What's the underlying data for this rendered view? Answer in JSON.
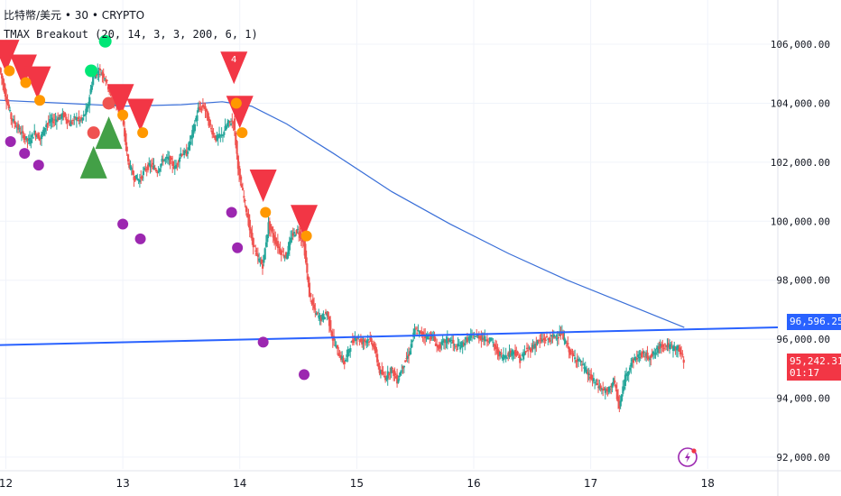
{
  "header": {
    "symbol_line": "比特幣/美元 • 30 • CRYPTO",
    "indicator_line": "TMAX Breakout (20, 14, 3, 3, 200, 6, 1)"
  },
  "tags": {
    "trendline_price": "96,596.25",
    "last_price": "95,242.31",
    "countdown": "01:17"
  },
  "colors": {
    "up": "#26a69a",
    "down": "#ef5350",
    "ma": "#3a6fd8",
    "trendline": "#2962ff",
    "sell_triangle": "#f23645",
    "buy_triangle": "#43a047",
    "orange_dot": "#ff9800",
    "purple_dot": "#9c27b0",
    "green_dot": "#00e676",
    "red_dot": "#ef5350"
  },
  "chart_data": {
    "type": "candlestick",
    "y_axis": {
      "ticks": [
        92000,
        94000,
        96000,
        98000,
        100000,
        102000,
        104000,
        106000
      ],
      "tick_labels": [
        "92,000.00",
        "94,000.00",
        "96,000.00",
        "98,000.00",
        "100,000.00",
        "102,000.00",
        "104,000.00",
        "106,000.00"
      ],
      "ylim": [
        91600,
        107500
      ]
    },
    "x_axis": {
      "ticks": [
        12,
        13,
        14,
        15,
        16,
        17,
        18
      ],
      "tick_labels": [
        "12",
        "13",
        "14",
        "15",
        "16",
        "17",
        "18"
      ],
      "xlim": [
        11.95,
        18.6
      ]
    },
    "close_path": [
      [
        11.95,
        105200
      ],
      [
        12.0,
        104300
      ],
      [
        12.05,
        103500
      ],
      [
        12.1,
        103200
      ],
      [
        12.15,
        102900
      ],
      [
        12.2,
        102700
      ],
      [
        12.25,
        103000
      ],
      [
        12.3,
        102800
      ],
      [
        12.35,
        103300
      ],
      [
        12.4,
        103400
      ],
      [
        12.45,
        103500
      ],
      [
        12.5,
        103600
      ],
      [
        12.55,
        103300
      ],
      [
        12.6,
        103500
      ],
      [
        12.65,
        103400
      ],
      [
        12.7,
        103800
      ],
      [
        12.75,
        104900
      ],
      [
        12.8,
        105100
      ],
      [
        12.85,
        104900
      ],
      [
        12.9,
        104300
      ],
      [
        12.95,
        103900
      ],
      [
        13.0,
        103500
      ],
      [
        13.05,
        102000
      ],
      [
        13.1,
        101500
      ],
      [
        13.15,
        101400
      ],
      [
        13.2,
        101800
      ],
      [
        13.25,
        101900
      ],
      [
        13.3,
        101700
      ],
      [
        13.35,
        102100
      ],
      [
        13.4,
        102100
      ],
      [
        13.45,
        101800
      ],
      [
        13.5,
        102300
      ],
      [
        13.55,
        102300
      ],
      [
        13.6,
        103000
      ],
      [
        13.65,
        103800
      ],
      [
        13.7,
        103900
      ],
      [
        13.75,
        103200
      ],
      [
        13.8,
        102800
      ],
      [
        13.85,
        102900
      ],
      [
        13.9,
        103300
      ],
      [
        13.95,
        103400
      ],
      [
        14.0,
        101500
      ],
      [
        14.05,
        100600
      ],
      [
        14.1,
        99500
      ],
      [
        14.15,
        98800
      ],
      [
        14.2,
        98500
      ],
      [
        14.25,
        99900
      ],
      [
        14.3,
        99400
      ],
      [
        14.35,
        99000
      ],
      [
        14.4,
        98800
      ],
      [
        14.45,
        99500
      ],
      [
        14.5,
        99700
      ],
      [
        14.55,
        99300
      ],
      [
        14.6,
        97500
      ],
      [
        14.65,
        96900
      ],
      [
        14.7,
        96700
      ],
      [
        14.75,
        96900
      ],
      [
        14.8,
        96000
      ],
      [
        14.85,
        95500
      ],
      [
        14.9,
        95200
      ],
      [
        14.95,
        95800
      ],
      [
        15.0,
        96100
      ],
      [
        15.05,
        95900
      ],
      [
        15.1,
        96000
      ],
      [
        15.15,
        95800
      ],
      [
        15.2,
        94900
      ],
      [
        15.25,
        94700
      ],
      [
        15.3,
        95000
      ],
      [
        15.35,
        94600
      ],
      [
        15.4,
        95100
      ],
      [
        15.45,
        95500
      ],
      [
        15.5,
        96300
      ],
      [
        15.55,
        96200
      ],
      [
        15.6,
        96100
      ],
      [
        15.65,
        96100
      ],
      [
        15.7,
        95700
      ],
      [
        15.75,
        95900
      ],
      [
        15.8,
        96000
      ],
      [
        15.85,
        95700
      ],
      [
        15.9,
        95800
      ],
      [
        15.95,
        96000
      ],
      [
        16.0,
        96100
      ],
      [
        16.05,
        96100
      ],
      [
        16.1,
        96000
      ],
      [
        16.15,
        96000
      ],
      [
        16.2,
        95600
      ],
      [
        16.25,
        95400
      ],
      [
        16.3,
        95500
      ],
      [
        16.35,
        95600
      ],
      [
        16.4,
        95300
      ],
      [
        16.45,
        95600
      ],
      [
        16.5,
        95700
      ],
      [
        16.55,
        95900
      ],
      [
        16.6,
        96000
      ],
      [
        16.65,
        96000
      ],
      [
        16.7,
        96100
      ],
      [
        16.75,
        96200
      ],
      [
        16.8,
        95800
      ],
      [
        16.85,
        95400
      ],
      [
        16.9,
        95300
      ],
      [
        16.95,
        95000
      ],
      [
        17.0,
        94700
      ],
      [
        17.05,
        94500
      ],
      [
        17.1,
        94300
      ],
      [
        17.15,
        94200
      ],
      [
        17.2,
        94600
      ],
      [
        17.25,
        93700
      ],
      [
        17.3,
        94700
      ],
      [
        17.35,
        95200
      ],
      [
        17.4,
        95400
      ],
      [
        17.45,
        95500
      ],
      [
        17.5,
        95400
      ],
      [
        17.55,
        95500
      ],
      [
        17.6,
        95800
      ],
      [
        17.65,
        95800
      ],
      [
        17.7,
        95700
      ],
      [
        17.75,
        95700
      ],
      [
        17.8,
        95300
      ]
    ],
    "ma_line": {
      "x": [
        11.95,
        12.5,
        13.0,
        13.5,
        13.85,
        14.1,
        14.4,
        14.8,
        15.3,
        15.8,
        16.3,
        16.8,
        17.3,
        17.8
      ],
      "values": [
        104100,
        104000,
        103900,
        103950,
        104050,
        103900,
        103300,
        102300,
        101000,
        99900,
        98900,
        98000,
        97200,
        96400
      ]
    },
    "trendline": {
      "x": [
        11.95,
        18.6
      ],
      "values": [
        95800,
        96400
      ]
    },
    "sell_signals": [
      {
        "x": 12.0,
        "y": 105600
      },
      {
        "x": 12.15,
        "y": 105100
      },
      {
        "x": 12.27,
        "y": 104700
      },
      {
        "x": 12.98,
        "y": 104100
      },
      {
        "x": 13.15,
        "y": 103600
      },
      {
        "x": 13.95,
        "y": 105200,
        "label": "4"
      },
      {
        "x": 14.0,
        "y": 103700
      },
      {
        "x": 14.2,
        "y": 101200
      },
      {
        "x": 14.55,
        "y": 100000
      }
    ],
    "buy_signals": [
      {
        "x": 12.75,
        "y": 102000
      },
      {
        "x": 12.88,
        "y": 103000
      }
    ],
    "orange_dots": [
      {
        "x": 12.03,
        "y": 105100
      },
      {
        "x": 12.17,
        "y": 104700
      },
      {
        "x": 12.29,
        "y": 104100
      },
      {
        "x": 13.0,
        "y": 103600
      },
      {
        "x": 13.17,
        "y": 103000
      },
      {
        "x": 13.97,
        "y": 104000
      },
      {
        "x": 14.02,
        "y": 103000
      },
      {
        "x": 14.22,
        "y": 100300
      },
      {
        "x": 14.57,
        "y": 99500
      }
    ],
    "purple_dots": [
      {
        "x": 12.04,
        "y": 102700
      },
      {
        "x": 12.16,
        "y": 102300
      },
      {
        "x": 12.28,
        "y": 101900
      },
      {
        "x": 13.0,
        "y": 99900
      },
      {
        "x": 13.15,
        "y": 99400
      },
      {
        "x": 13.93,
        "y": 100300
      },
      {
        "x": 13.98,
        "y": 99100
      },
      {
        "x": 14.2,
        "y": 95900
      },
      {
        "x": 14.55,
        "y": 94800
      }
    ],
    "green_dots": [
      {
        "x": 12.85,
        "y": 106100
      },
      {
        "x": 12.73,
        "y": 105100
      }
    ],
    "red_dots": [
      {
        "x": 12.75,
        "y": 103000
      },
      {
        "x": 12.88,
        "y": 104000
      }
    ]
  }
}
